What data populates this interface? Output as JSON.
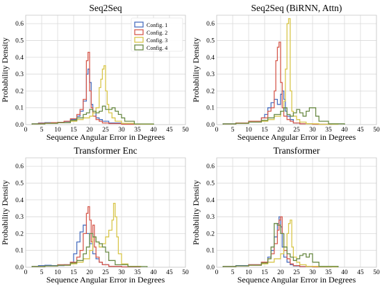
{
  "chart_data": [
    {
      "type": "histogram-step",
      "title": "Seq2Seq",
      "xlabel": "Sequence Angular Error in Degrees",
      "ylabel": "Probability Density",
      "xlim": [
        0,
        50
      ],
      "ylim": [
        0,
        0.65
      ],
      "xticks": [
        0,
        5,
        10,
        15,
        20,
        25,
        30,
        35,
        40,
        45,
        50
      ],
      "yticks": [
        0.0,
        0.1,
        0.2,
        0.3,
        0.4,
        0.5,
        0.6
      ],
      "grid": true,
      "legend": "top-right",
      "series": [
        {
          "name": "Config. 1",
          "color": "#4a6fbf",
          "bin_edges": [
            2,
            4,
            6,
            8,
            10,
            12,
            14,
            16,
            17,
            18,
            19,
            19.5,
            20,
            20.5,
            21,
            22,
            23,
            24,
            26,
            30,
            36
          ],
          "density": [
            0.005,
            0.01,
            0.012,
            0.01,
            0.012,
            0.018,
            0.03,
            0.05,
            0.08,
            0.14,
            0.3,
            0.33,
            0.25,
            0.12,
            0.07,
            0.04,
            0.03,
            0.02,
            0.01,
            0.003
          ]
        },
        {
          "name": "Config. 2",
          "color": "#d65a4e",
          "bin_edges": [
            2,
            4,
            6,
            8,
            10,
            12,
            14,
            16,
            17,
            18,
            19,
            19.5,
            20,
            20.5,
            21,
            22,
            23,
            24,
            26,
            30,
            36
          ],
          "density": [
            0.004,
            0.008,
            0.01,
            0.012,
            0.014,
            0.02,
            0.035,
            0.06,
            0.09,
            0.15,
            0.38,
            0.43,
            0.2,
            0.1,
            0.05,
            0.03,
            0.02,
            0.01,
            0.006,
            0.002
          ]
        },
        {
          "name": "Config. 3",
          "color": "#d8c64a",
          "bin_edges": [
            2,
            6,
            10,
            14,
            16,
            18,
            20,
            21,
            22,
            23,
            23.5,
            24,
            24.5,
            25,
            25.5,
            26,
            27,
            28,
            30,
            34,
            40
          ],
          "density": [
            0.004,
            0.008,
            0.012,
            0.02,
            0.03,
            0.04,
            0.05,
            0.07,
            0.1,
            0.22,
            0.27,
            0.33,
            0.35,
            0.2,
            0.12,
            0.07,
            0.04,
            0.02,
            0.008,
            0.003
          ]
        },
        {
          "name": "Config. 4",
          "color": "#6a8a45",
          "bin_edges": [
            2,
            6,
            10,
            14,
            16,
            18,
            19,
            20,
            21,
            22,
            23,
            24,
            25,
            26,
            27,
            28,
            29,
            30,
            31,
            34,
            40
          ],
          "density": [
            0.004,
            0.008,
            0.012,
            0.025,
            0.04,
            0.06,
            0.07,
            0.09,
            0.08,
            0.07,
            0.08,
            0.11,
            0.09,
            0.09,
            0.1,
            0.08,
            0.06,
            0.04,
            0.02,
            0.004
          ]
        }
      ]
    },
    {
      "type": "histogram-step",
      "title": "Seq2Seq (BiRNN, Attn)",
      "xlabel": "Sequence Angular Error in Degrees",
      "ylabel": "Probability Density",
      "xlim": [
        0,
        50
      ],
      "ylim": [
        0,
        0.65
      ],
      "xticks": [
        0,
        5,
        10,
        15,
        20,
        25,
        30,
        35,
        40,
        45,
        50
      ],
      "yticks": [
        0.0,
        0.1,
        0.2,
        0.3,
        0.4,
        0.5,
        0.6
      ],
      "grid": true,
      "series": [
        {
          "name": "Config. 1",
          "color": "#4a6fbf",
          "bin_edges": [
            2,
            6,
            10,
            14,
            15,
            16,
            17,
            18,
            19,
            20,
            20.5,
            21,
            21.5,
            22,
            23,
            24,
            26,
            30,
            36
          ],
          "density": [
            0.005,
            0.01,
            0.02,
            0.04,
            0.06,
            0.1,
            0.13,
            0.15,
            0.12,
            0.18,
            0.2,
            0.15,
            0.08,
            0.05,
            0.03,
            0.01,
            0.005,
            0.002
          ]
        },
        {
          "name": "Config. 2",
          "color": "#d65a4e",
          "bin_edges": [
            2,
            6,
            10,
            14,
            16,
            17,
            18,
            18.5,
            19,
            19.5,
            20,
            20.5,
            21,
            22,
            23,
            24,
            26,
            30,
            36
          ],
          "density": [
            0.004,
            0.01,
            0.02,
            0.04,
            0.08,
            0.1,
            0.2,
            0.38,
            0.46,
            0.49,
            0.25,
            0.1,
            0.05,
            0.03,
            0.02,
            0.01,
            0.005,
            0.002
          ]
        },
        {
          "name": "Config. 3",
          "color": "#d8c64a",
          "bin_edges": [
            2,
            6,
            10,
            14,
            16,
            18,
            20,
            21,
            21.5,
            22,
            22.5,
            23,
            23.5,
            24,
            25,
            26,
            28,
            32,
            38
          ],
          "density": [
            0.004,
            0.008,
            0.015,
            0.02,
            0.03,
            0.05,
            0.08,
            0.14,
            0.33,
            0.6,
            0.63,
            0.2,
            0.08,
            0.05,
            0.03,
            0.015,
            0.005,
            0.002
          ]
        },
        {
          "name": "Config. 4",
          "color": "#6a8a45",
          "bin_edges": [
            2,
            6,
            10,
            14,
            16,
            18,
            20,
            21,
            22,
            23,
            24,
            25,
            26,
            27,
            28,
            29,
            30,
            31,
            32,
            35,
            40
          ],
          "density": [
            0.004,
            0.008,
            0.015,
            0.025,
            0.04,
            0.06,
            0.08,
            0.1,
            0.06,
            0.05,
            0.07,
            0.09,
            0.07,
            0.05,
            0.08,
            0.1,
            0.1,
            0.05,
            0.02,
            0.005
          ]
        }
      ]
    },
    {
      "type": "histogram-step",
      "title": "Transformer Enc",
      "xlabel": "Sequence Angular Error in Degrees",
      "ylabel": "Probability Density",
      "xlim": [
        0,
        50
      ],
      "ylim": [
        0,
        0.65
      ],
      "xticks": [
        0,
        5,
        10,
        15,
        20,
        25,
        30,
        35,
        40,
        45,
        50
      ],
      "yticks": [
        0.0,
        0.1,
        0.2,
        0.3,
        0.4,
        0.5,
        0.6
      ],
      "grid": true,
      "series": [
        {
          "name": "Config. 1",
          "color": "#4a6fbf",
          "bin_edges": [
            2,
            4,
            6,
            8,
            10,
            12,
            14,
            15,
            16,
            17,
            18,
            19,
            20,
            21,
            22,
            23,
            24,
            26,
            30,
            36
          ],
          "density": [
            0.005,
            0.01,
            0.012,
            0.01,
            0.01,
            0.015,
            0.03,
            0.08,
            0.15,
            0.21,
            0.25,
            0.2,
            0.14,
            0.08,
            0.05,
            0.03,
            0.015,
            0.005,
            0.002
          ]
        },
        {
          "name": "Config. 2",
          "color": "#d65a4e",
          "bin_edges": [
            2,
            6,
            10,
            14,
            16,
            17,
            18,
            19,
            19.5,
            20,
            20.5,
            21,
            21.5,
            22,
            23,
            24,
            26,
            30,
            36
          ],
          "density": [
            0.004,
            0.008,
            0.015,
            0.03,
            0.06,
            0.1,
            0.2,
            0.32,
            0.36,
            0.28,
            0.15,
            0.25,
            0.12,
            0.06,
            0.03,
            0.015,
            0.005,
            0.002
          ]
        },
        {
          "name": "Config. 3",
          "color": "#d8c64a",
          "bin_edges": [
            2,
            6,
            10,
            14,
            16,
            18,
            20,
            21,
            22,
            23,
            24,
            25,
            26,
            27,
            27.5,
            28,
            28.5,
            29,
            30,
            32,
            36
          ],
          "density": [
            0.004,
            0.008,
            0.012,
            0.02,
            0.03,
            0.05,
            0.1,
            0.18,
            0.15,
            0.12,
            0.14,
            0.18,
            0.22,
            0.28,
            0.38,
            0.3,
            0.18,
            0.08,
            0.02,
            0.005
          ]
        },
        {
          "name": "Config. 4",
          "color": "#6a8a45",
          "bin_edges": [
            2,
            6,
            10,
            14,
            16,
            18,
            19,
            20,
            21,
            22,
            23,
            24,
            25,
            26,
            28,
            32,
            38
          ],
          "density": [
            0.004,
            0.008,
            0.012,
            0.025,
            0.04,
            0.08,
            0.12,
            0.2,
            0.18,
            0.15,
            0.14,
            0.12,
            0.09,
            0.04,
            0.015,
            0.004
          ]
        }
      ]
    },
    {
      "type": "histogram-step",
      "title": "Transformer",
      "xlabel": "Sequence Angular Error in Degrees",
      "ylabel": "Probability Density",
      "xlim": [
        0,
        50
      ],
      "ylim": [
        0,
        0.65
      ],
      "xticks": [
        0,
        5,
        10,
        15,
        20,
        25,
        30,
        35,
        40,
        45,
        50
      ],
      "yticks": [
        0.0,
        0.1,
        0.2,
        0.3,
        0.4,
        0.5,
        0.6
      ],
      "grid": true,
      "series": [
        {
          "name": "Config. 1",
          "color": "#4a6fbf",
          "bin_edges": [
            2,
            6,
            10,
            14,
            16,
            17,
            18,
            19,
            19.5,
            20,
            20.5,
            21,
            22,
            23,
            24,
            26,
            30,
            36
          ],
          "density": [
            0.005,
            0.01,
            0.015,
            0.03,
            0.06,
            0.1,
            0.18,
            0.26,
            0.3,
            0.24,
            0.12,
            0.06,
            0.03,
            0.015,
            0.008,
            0.004,
            0.002
          ]
        },
        {
          "name": "Config. 2",
          "color": "#d65a4e",
          "bin_edges": [
            2,
            6,
            10,
            14,
            16,
            17,
            18,
            19,
            19.5,
            20,
            20.5,
            21,
            22,
            23,
            24,
            26,
            30,
            36
          ],
          "density": [
            0.004,
            0.008,
            0.015,
            0.03,
            0.05,
            0.08,
            0.14,
            0.22,
            0.28,
            0.3,
            0.2,
            0.1,
            0.05,
            0.02,
            0.01,
            0.004,
            0.002
          ]
        },
        {
          "name": "Config. 3",
          "color": "#d8c64a",
          "bin_edges": [
            2,
            6,
            10,
            14,
            16,
            18,
            20,
            21,
            22,
            22.5,
            23,
            23.5,
            24,
            25,
            26,
            28,
            32,
            38
          ],
          "density": [
            0.004,
            0.008,
            0.012,
            0.02,
            0.03,
            0.05,
            0.08,
            0.12,
            0.2,
            0.26,
            0.28,
            0.12,
            0.06,
            0.03,
            0.015,
            0.005,
            0.002
          ]
        },
        {
          "name": "Config. 4",
          "color": "#6a8a45",
          "bin_edges": [
            2,
            6,
            10,
            14,
            16,
            17,
            18,
            19,
            20,
            21,
            22,
            23,
            24,
            25,
            26,
            27,
            28,
            29,
            30,
            32,
            38
          ],
          "density": [
            0.004,
            0.008,
            0.012,
            0.025,
            0.05,
            0.12,
            0.26,
            0.25,
            0.2,
            0.12,
            0.08,
            0.06,
            0.04,
            0.05,
            0.07,
            0.08,
            0.06,
            0.08,
            0.03,
            0.005
          ]
        }
      ]
    }
  ]
}
